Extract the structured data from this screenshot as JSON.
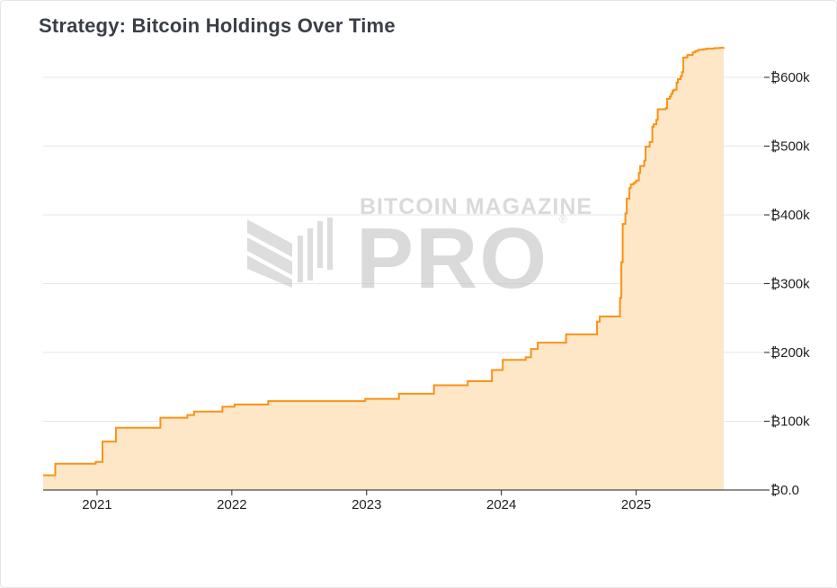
{
  "chart_data": {
    "type": "area",
    "title": "Strategy: Bitcoin Holdings Over Time",
    "xlabel": "",
    "ylabel": "",
    "series": [
      {
        "name": "Bitcoin Holdings",
        "color": "#f7931a",
        "fill": "#fde7c6",
        "step": true,
        "x": [
          2020.6,
          2020.69,
          2020.99,
          2021.04,
          2021.14,
          2021.47,
          2021.67,
          2021.72,
          2021.93,
          2022.02,
          2022.27,
          2022.99,
          2023.24,
          2023.5,
          2023.75,
          2023.93,
          2024.01,
          2024.18,
          2024.22,
          2024.27,
          2024.48,
          2024.71,
          2024.73,
          2024.88,
          2024.89,
          2024.9,
          2024.92,
          2024.93,
          2024.95,
          2024.96,
          2024.98,
          2024.99,
          2025.0,
          2025.02,
          2025.03,
          2025.06,
          2025.07,
          2025.08,
          2025.1,
          2025.12,
          2025.13,
          2025.15,
          2025.16,
          2025.22,
          2025.23,
          2025.25,
          2025.26,
          2025.27,
          2025.28,
          2025.3,
          2025.31,
          2025.33,
          2025.34,
          2025.35,
          2025.37,
          2025.38,
          2025.42,
          2025.44,
          2025.46,
          2025.48,
          2025.5,
          2025.52,
          2025.58,
          2025.62,
          2025.65
        ],
        "values": [
          21454,
          38250,
          40824,
          70470,
          90531,
          105085,
          108992,
          114042,
          121044,
          124391,
          129218,
          132500,
          140000,
          152333,
          158245,
          174530,
          189150,
          193000,
          205000,
          214246,
          226331,
          244800,
          252220,
          279420,
          331200,
          386700,
          402100,
          423650,
          439000,
          444262,
          446400,
          447470,
          450000,
          461000,
          471107,
          478740,
          499096,
          499226,
          506137,
          528185,
          531644,
          538200,
          553555,
          555450,
          568840,
          572000,
          576230,
          580250,
          582000,
          592100,
          597325,
          601550,
          607770,
          628791,
          628946,
          632457,
          636505,
          638460,
          640031,
          640250,
          640808,
          641692,
          642500,
          643000,
          643500
        ]
      }
    ],
    "x_ticks": [
      {
        "value": 2021,
        "label": "2021"
      },
      {
        "value": 2022,
        "label": "2022"
      },
      {
        "value": 2023,
        "label": "2023"
      },
      {
        "value": 2024,
        "label": "2024"
      },
      {
        "value": 2025,
        "label": "2025"
      }
    ],
    "y_ticks": [
      {
        "value": 0,
        "label": "₿0.0"
      },
      {
        "value": 100000,
        "label": "₿100k"
      },
      {
        "value": 200000,
        "label": "₿200k"
      },
      {
        "value": 300000,
        "label": "₿300k"
      },
      {
        "value": 400000,
        "label": "₿400k"
      },
      {
        "value": 500000,
        "label": "₿500k"
      },
      {
        "value": 600000,
        "label": "₿600k"
      }
    ],
    "xlim": [
      2020.6,
      2025.95
    ],
    "ylim": [
      0,
      634000
    ],
    "grid": true,
    "y_axis_side": "right"
  },
  "watermark": {
    "line1": "BITCOIN MAGAZINE",
    "line2": "PRO",
    "mark": "®"
  }
}
